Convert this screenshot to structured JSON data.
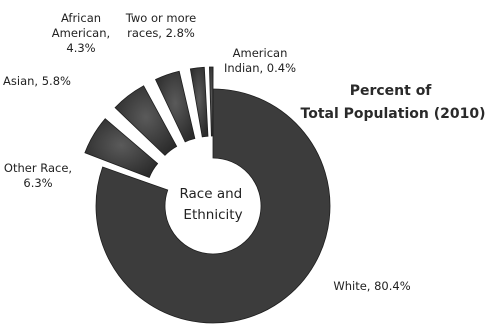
{
  "chart_data": {
    "type": "pie",
    "donut": true,
    "title": "Percent of Total Population (2010)",
    "center_label": "Race and Ethnicity",
    "slices": [
      {
        "name": "White",
        "value": 80.4,
        "label_lines": [
          "White, 80.4%"
        ],
        "exploded": false
      },
      {
        "name": "Other Race",
        "value": 6.3,
        "label_lines": [
          "Other Race,",
          "6.3%"
        ],
        "exploded": true
      },
      {
        "name": "Asian",
        "value": 5.8,
        "label_lines": [
          "Asian, 5.8%"
        ],
        "exploded": true
      },
      {
        "name": "African American",
        "value": 4.3,
        "label_lines": [
          "African",
          "American,",
          "4.3%"
        ],
        "exploded": true
      },
      {
        "name": "Two or more races",
        "value": 2.8,
        "label_lines": [
          "Two or more",
          "races, 2.8%"
        ],
        "exploded": true
      },
      {
        "name": "American Indian",
        "value": 0.4,
        "label_lines": [
          "American",
          "Indian, 0.4%"
        ],
        "exploded": true
      }
    ],
    "legend": "none",
    "slice_color": "#3c3c3c"
  }
}
